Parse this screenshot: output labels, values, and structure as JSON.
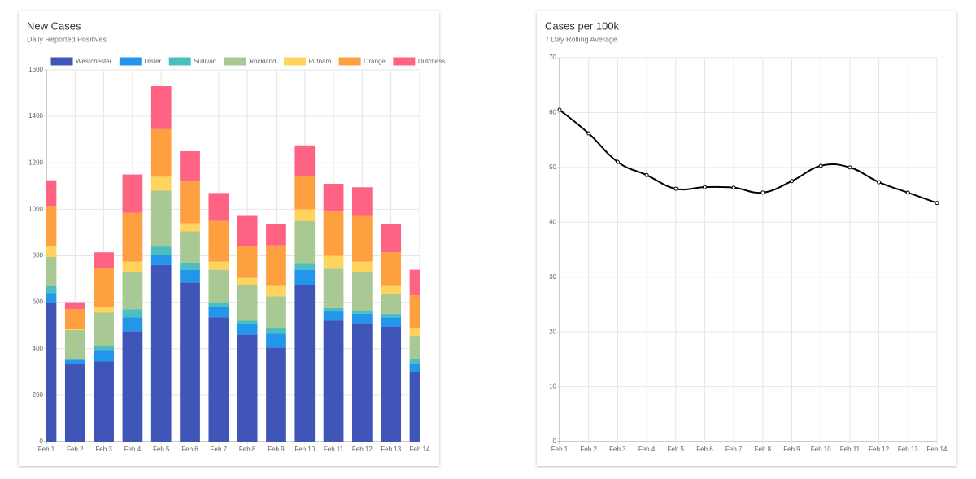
{
  "chart_data": [
    {
      "type": "bar",
      "stacked": true,
      "title": "New Cases",
      "subtitle": "Daily Reported Positives",
      "categories": [
        "Feb 1",
        "Feb 2",
        "Feb 3",
        "Feb 4",
        "Feb 5",
        "Feb 6",
        "Feb 7",
        "Feb 8",
        "Feb 9",
        "Feb 10",
        "Feb 11",
        "Feb 12",
        "Feb 13",
        "Feb 14"
      ],
      "series": [
        {
          "name": "Westchester",
          "color": "#3f55b8",
          "values": [
            600,
            335,
            345,
            475,
            760,
            685,
            535,
            460,
            405,
            675,
            520,
            510,
            495,
            300
          ]
        },
        {
          "name": "Ulster",
          "color": "#2196ea",
          "values": [
            40,
            15,
            50,
            60,
            45,
            55,
            45,
            45,
            60,
            65,
            40,
            40,
            40,
            35
          ]
        },
        {
          "name": "Sullivan",
          "color": "#4bbfbf",
          "values": [
            30,
            5,
            15,
            35,
            35,
            30,
            20,
            15,
            25,
            25,
            15,
            15,
            15,
            20
          ]
        },
        {
          "name": "Rockland",
          "color": "#a8c993",
          "values": [
            125,
            125,
            145,
            160,
            240,
            135,
            140,
            155,
            135,
            185,
            170,
            165,
            85,
            100
          ]
        },
        {
          "name": "Putnam",
          "color": "#ffd35c",
          "values": [
            45,
            5,
            25,
            45,
            60,
            35,
            35,
            30,
            45,
            50,
            55,
            45,
            35,
            35
          ]
        },
        {
          "name": "Orange",
          "color": "#ffa040",
          "values": [
            175,
            85,
            165,
            210,
            205,
            180,
            175,
            135,
            175,
            145,
            190,
            200,
            145,
            140
          ]
        },
        {
          "name": "Dutchess",
          "color": "#ff6384",
          "values": [
            110,
            30,
            70,
            165,
            185,
            130,
            120,
            135,
            90,
            130,
            120,
            120,
            120,
            110
          ]
        }
      ],
      "ylim": [
        0,
        1600
      ],
      "yticks": [
        0,
        200,
        400,
        600,
        800,
        1000,
        1200,
        1400,
        1600
      ],
      "grid": true,
      "legend": "top"
    },
    {
      "type": "line",
      "title": "Cases per 100k",
      "subtitle": "7 Day Rolling Average",
      "categories": [
        "Feb 1",
        "Feb 2",
        "Feb 3",
        "Feb 4",
        "Feb 5",
        "Feb 6",
        "Feb 7",
        "Feb 8",
        "Feb 9",
        "Feb 10",
        "Feb 11",
        "Feb 12",
        "Feb 13",
        "Feb 14"
      ],
      "color": "#000000",
      "values": [
        60.5,
        56.2,
        51.0,
        48.6,
        46.1,
        46.4,
        46.3,
        45.4,
        47.5,
        50.3,
        50.0,
        47.3,
        45.4,
        43.5
      ],
      "ylim": [
        0,
        70
      ],
      "yticks": [
        0,
        10,
        20,
        30,
        40,
        50,
        60,
        70
      ],
      "grid": true
    }
  ]
}
